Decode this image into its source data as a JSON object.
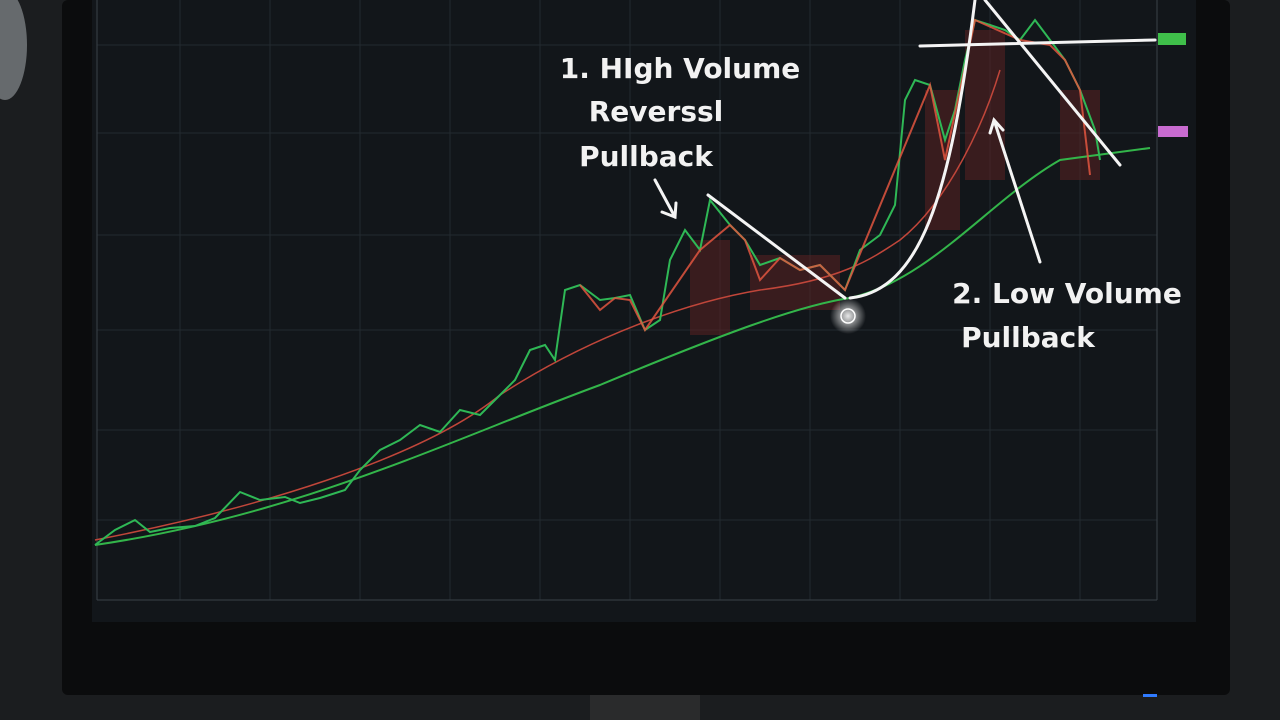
{
  "annotations": {
    "first": [
      "1. HIgh Volume",
      "Reverssl",
      "Pullback"
    ],
    "second": [
      "2. Low Volume",
      "Pullback"
    ]
  }
}
